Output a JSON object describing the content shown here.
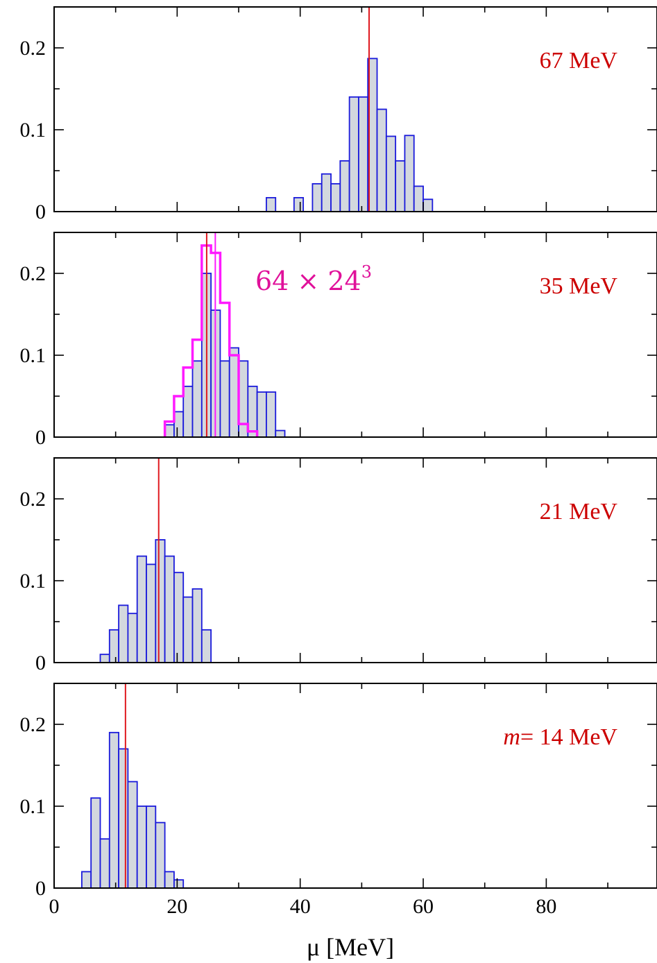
{
  "chart_data": {
    "type": "bar",
    "xlabel": "μ [MeV]",
    "xlim": [
      0,
      98
    ],
    "x_ticks": [
      0,
      20,
      40,
      60,
      80
    ],
    "y_ticks": [
      0,
      0.1,
      0.2
    ],
    "ylim": [
      0,
      0.25
    ],
    "bin_width": 1.5,
    "colors": {
      "bar_fill": "#d3d8de",
      "bar_edge": "#1a1adb",
      "marker": "#e0191f",
      "label": "#cc0000",
      "lattice": "#ff1aff",
      "lattice_text": "#e0119a"
    },
    "panels": [
      {
        "label": "67 MeV",
        "marker": 51.2,
        "bins": [
          [
            34.5,
            0.017
          ],
          [
            36.0,
            0
          ],
          [
            37.5,
            0
          ],
          [
            39.0,
            0.017
          ],
          [
            40.5,
            0
          ],
          [
            42.0,
            0.034
          ],
          [
            43.5,
            0.046
          ],
          [
            45.0,
            0.034
          ],
          [
            46.5,
            0.062
          ],
          [
            48.0,
            0.14
          ],
          [
            49.5,
            0.14
          ],
          [
            51.0,
            0.187
          ],
          [
            52.5,
            0.125
          ],
          [
            54.0,
            0.092
          ],
          [
            55.5,
            0.062
          ],
          [
            57.0,
            0.093
          ],
          [
            58.5,
            0.031
          ],
          [
            60.0,
            0.015
          ]
        ]
      },
      {
        "label": "35 MeV",
        "marker": 24.8,
        "lattice_label": "64 × 24",
        "lattice_label_sup": "3",
        "lattice_marker": 26.2,
        "bins": [
          [
            18.0,
            0.015
          ],
          [
            19.5,
            0.031
          ],
          [
            21.0,
            0.062
          ],
          [
            22.5,
            0.093
          ],
          [
            24.0,
            0.2
          ],
          [
            25.5,
            0.155
          ],
          [
            27.0,
            0.093
          ],
          [
            28.5,
            0.109
          ],
          [
            30.0,
            0.093
          ],
          [
            31.5,
            0.062
          ],
          [
            33.0,
            0.055
          ],
          [
            34.5,
            0.055
          ],
          [
            36.0,
            0.008
          ]
        ],
        "lattice_bins": [
          [
            18.0,
            0.019
          ],
          [
            19.5,
            0.05
          ],
          [
            21.0,
            0.085
          ],
          [
            22.5,
            0.119
          ],
          [
            24.0,
            0.234
          ],
          [
            25.5,
            0.225
          ],
          [
            27.0,
            0.164
          ],
          [
            28.5,
            0.1
          ],
          [
            30.0,
            0.016
          ],
          [
            31.5,
            0.007
          ]
        ]
      },
      {
        "label": "21 MeV",
        "marker": 17.0,
        "bins": [
          [
            7.5,
            0.01
          ],
          [
            9.0,
            0.04
          ],
          [
            10.5,
            0.07
          ],
          [
            12.0,
            0.06
          ],
          [
            13.5,
            0.13
          ],
          [
            15.0,
            0.12
          ],
          [
            16.5,
            0.15
          ],
          [
            18.0,
            0.13
          ],
          [
            19.5,
            0.11
          ],
          [
            21.0,
            0.08
          ],
          [
            22.5,
            0.09
          ],
          [
            24.0,
            0.04
          ],
          [
            25.5,
            0.0
          ]
        ]
      },
      {
        "label": "= 14 MeV",
        "label_var": "m",
        "marker": 11.6,
        "bins": [
          [
            4.5,
            0.02
          ],
          [
            6.0,
            0.11
          ],
          [
            7.5,
            0.06
          ],
          [
            9.0,
            0.19
          ],
          [
            10.5,
            0.17
          ],
          [
            12.0,
            0.13
          ],
          [
            13.5,
            0.1
          ],
          [
            15.0,
            0.1
          ],
          [
            16.5,
            0.08
          ],
          [
            18.0,
            0.02
          ],
          [
            19.5,
            0.01
          ],
          [
            21.0,
            0.0
          ]
        ]
      }
    ]
  }
}
